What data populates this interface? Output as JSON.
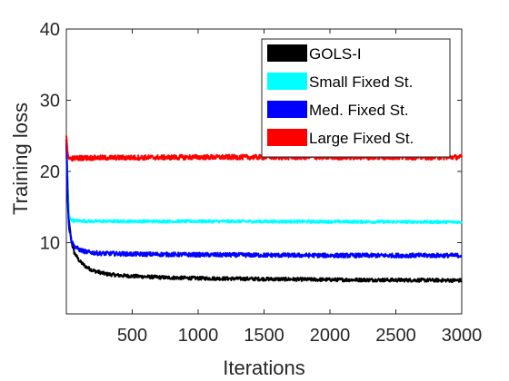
{
  "chart_data": {
    "type": "line",
    "xlabel": "Iterations",
    "ylabel": "Training loss",
    "xlim": [
      0,
      3000
    ],
    "ylim": [
      0,
      40
    ],
    "xticks": [
      500,
      1000,
      1500,
      2000,
      2500,
      3000
    ],
    "yticks": [
      10,
      20,
      30,
      40
    ],
    "grid": false,
    "legend_position": "top-right",
    "series": [
      {
        "name": "GOLS-I",
        "color": "#000000",
        "points": [
          [
            0,
            24.5
          ],
          [
            10,
            18
          ],
          [
            20,
            13
          ],
          [
            40,
            10
          ],
          [
            60,
            8.6
          ],
          [
            100,
            7.4
          ],
          [
            150,
            6.6
          ],
          [
            200,
            6.1
          ],
          [
            300,
            5.6
          ],
          [
            400,
            5.4
          ],
          [
            500,
            5.3
          ],
          [
            750,
            5.1
          ],
          [
            1000,
            5.0
          ],
          [
            1500,
            4.9
          ],
          [
            2000,
            4.8
          ],
          [
            2500,
            4.75
          ],
          [
            3000,
            4.7
          ]
        ],
        "noise": 0.25
      },
      {
        "name": "Small Fixed St.",
        "color": "#00ffff",
        "points": [
          [
            0,
            24
          ],
          [
            10,
            17
          ],
          [
            20,
            14
          ],
          [
            30,
            13.3
          ],
          [
            50,
            13.1
          ],
          [
            200,
            13.0
          ],
          [
            1000,
            13.0
          ],
          [
            2000,
            12.95
          ],
          [
            3000,
            12.9
          ]
        ],
        "noise": 0.2
      },
      {
        "name": "Med. Fixed St.",
        "color": "#0000ff",
        "points": [
          [
            0,
            24
          ],
          [
            10,
            16
          ],
          [
            20,
            12
          ],
          [
            40,
            10.2
          ],
          [
            60,
            9.5
          ],
          [
            100,
            9.0
          ],
          [
            150,
            8.7
          ],
          [
            250,
            8.5
          ],
          [
            500,
            8.4
          ],
          [
            1000,
            8.3
          ],
          [
            2000,
            8.2
          ],
          [
            3000,
            8.2
          ]
        ],
        "noise": 0.3
      },
      {
        "name": "Large Fixed St.",
        "color": "#ff0000",
        "points": [
          [
            0,
            25
          ],
          [
            10,
            22.5
          ],
          [
            20,
            21.8
          ],
          [
            100,
            21.9
          ],
          [
            1000,
            22.0
          ],
          [
            2000,
            22.0
          ],
          [
            3000,
            22.0
          ]
        ],
        "noise": 0.35
      }
    ]
  }
}
